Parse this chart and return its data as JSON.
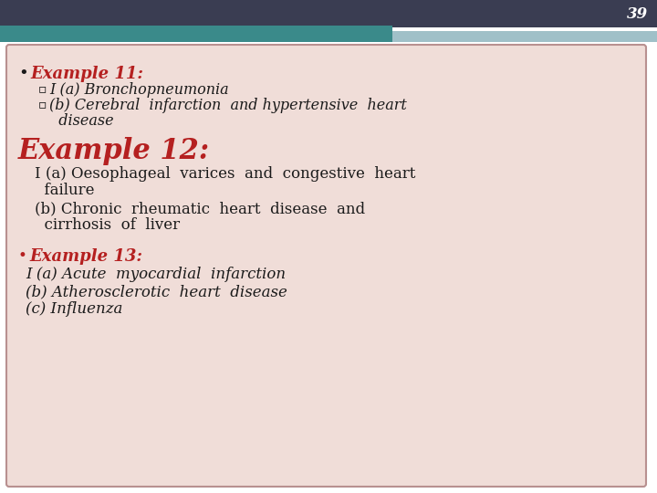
{
  "slide_number": "39",
  "page_bg": "#ffffff",
  "header_top_color": "#3a3d52",
  "header_teal_color": "#3a8a8a",
  "header_light_color": "#a0c0c8",
  "box_bg": "#f0ddd8",
  "box_border": "#b89090",
  "slide_number_color": "#ffffff",
  "red_color": "#b52020",
  "dark_color": "#1a1a1a",
  "example11_bullet": "•",
  "example11_title": "Example 11:",
  "sub_bullet": "▫",
  "sub1": "I (a) Bronchopneumonia",
  "sub2_line1": "(b) Cerebral  infarction  and hypertensive  heart",
  "sub2_line2": "  disease",
  "example12_title": "Example 12:",
  "ex12_line1": "I (a) Oesophageal  varices  and  congestive  heart",
  "ex12_line2": "  failure",
  "ex12_line3": "(b) Chronic  rheumatic  heart  disease  and",
  "ex12_line4": "  cirrhosis  of  liver",
  "example13_bullet": "•",
  "example13_title": "Example 13:",
  "ex13_line1": "I (a) Acute  myocardial  infarction",
  "ex13_line2": "(b) Atherosclerotic  heart  disease",
  "ex13_line3": "(c) Influenza"
}
